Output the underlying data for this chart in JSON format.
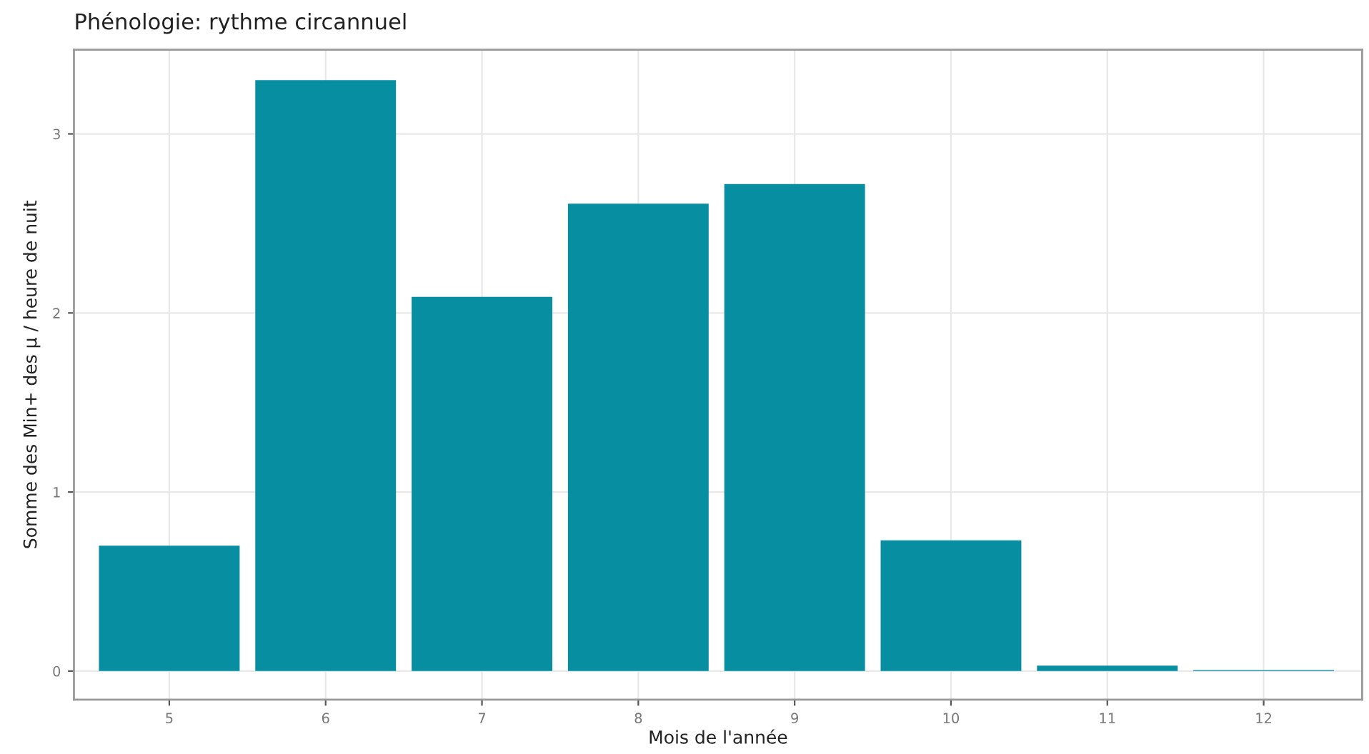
{
  "chart_data": {
    "type": "bar",
    "title": "Phénologie: rythme circannuel",
    "xlabel": "Mois de l'année",
    "ylabel": "Somme des Min+ des µ / heure de nuit",
    "x": [
      5,
      6,
      7,
      8,
      9,
      10,
      11,
      12
    ],
    "values": [
      0.7,
      3.3,
      2.09,
      2.61,
      2.72,
      0.73,
      0.03,
      0.005
    ],
    "color": "#078ea0",
    "xlim": [
      4.39,
      12.63
    ],
    "xticks": [
      5,
      6,
      7,
      8,
      9,
      10,
      11,
      12
    ],
    "ylim": [
      -0.16,
      3.47
    ],
    "yticks": [
      0,
      1,
      2,
      3
    ],
    "grid": true
  }
}
